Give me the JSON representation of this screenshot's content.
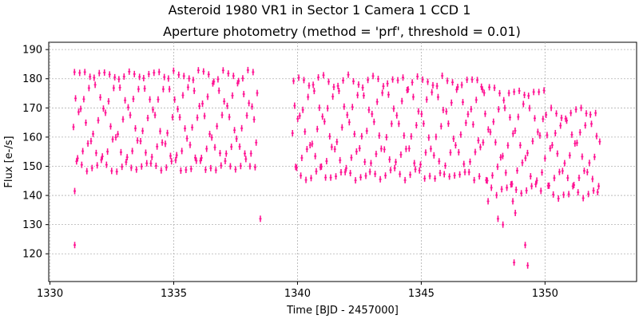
{
  "chart_data": {
    "type": "scatter",
    "suptitle": "Asteroid 1980 VR1 in Sector 1 Camera 1 CCD 1",
    "title": "Aperture photometry (method = 'prf', threshold = 0.01)",
    "xlabel": "Time [BJD - 2457000]",
    "ylabel": "Flux [e-/s]",
    "xlim": [
      1329.95,
      1353.7
    ],
    "ylim": [
      110.5,
      192.5
    ],
    "xticks": [
      1330,
      1335,
      1340,
      1345,
      1350
    ],
    "yticks": [
      120,
      130,
      140,
      150,
      160,
      170,
      180,
      190
    ],
    "grid": true,
    "color": "#ff1493",
    "cadence_days": 0.0417,
    "rotation_period_days": 0.2,
    "segments": [
      {
        "x_start": 1330.95,
        "x_end": 1338.4,
        "ymin": 146,
        "ymax": 183
      },
      {
        "x_start": 1339.8,
        "x_end": 1347.5,
        "ymin": 143,
        "ymax": 181
      },
      {
        "x_start": 1347.5,
        "x_end": 1350.0,
        "ymin": 138,
        "ymax": 177
      },
      {
        "x_start": 1350.0,
        "x_end": 1352.25,
        "ymin": 137,
        "ymax": 170
      }
    ],
    "outliers": [
      {
        "x": 1331.0,
        "y": 123
      },
      {
        "x": 1331.0,
        "y": 141.5
      },
      {
        "x": 1338.5,
        "y": 132
      },
      {
        "x": 1347.7,
        "y": 138
      },
      {
        "x": 1348.1,
        "y": 132
      },
      {
        "x": 1348.3,
        "y": 130
      },
      {
        "x": 1348.7,
        "y": 138
      },
      {
        "x": 1348.75,
        "y": 117
      },
      {
        "x": 1348.8,
        "y": 134
      },
      {
        "x": 1349.2,
        "y": 123
      },
      {
        "x": 1349.3,
        "y": 116
      }
    ]
  }
}
